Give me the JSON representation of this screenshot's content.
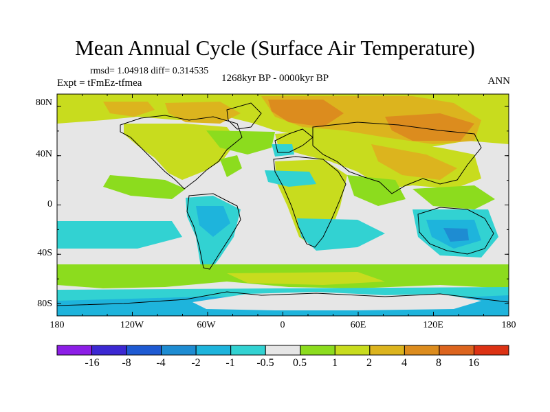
{
  "title": "Mean Annual Cycle (Surface Air Temperature)",
  "stats": "rmsd= 1.04918  diff= 0.314535",
  "experiment": "Expt = tFmEz-tfmea",
  "period": "1268kyr BP - 0000kyr BP",
  "season": "ANN",
  "lat_labels": [
    "80N",
    "40N",
    "0",
    "40S",
    "80S"
  ],
  "lon_labels": [
    "180",
    "120W",
    "60W",
    "0",
    "60E",
    "120E",
    "180"
  ],
  "colorbar": {
    "labels": [
      "-16",
      "-8",
      "-4",
      "-2",
      "-1",
      "-0.5",
      "0.5",
      "1",
      "2",
      "4",
      "8",
      "16"
    ],
    "colors": [
      "#8c1ee6",
      "#3c28d2",
      "#1e5ad2",
      "#1e8cd2",
      "#1eb4dc",
      "#32d2d2",
      "#e6e6e6",
      "#8cdc1e",
      "#c8dc1e",
      "#dcb41e",
      "#dc8c1e",
      "#dc641e",
      "#dc3214"
    ]
  },
  "map_colors": {
    "neutral": "#e6e6e6",
    "warm1": "#8cdc1e",
    "warm2": "#c8dc1e",
    "warm3": "#dcb41e",
    "warm4": "#dc8c1e",
    "cool1": "#32d2d2",
    "cool2": "#1eb4dc",
    "cool3": "#1e8cd2",
    "coast": "#000000"
  }
}
